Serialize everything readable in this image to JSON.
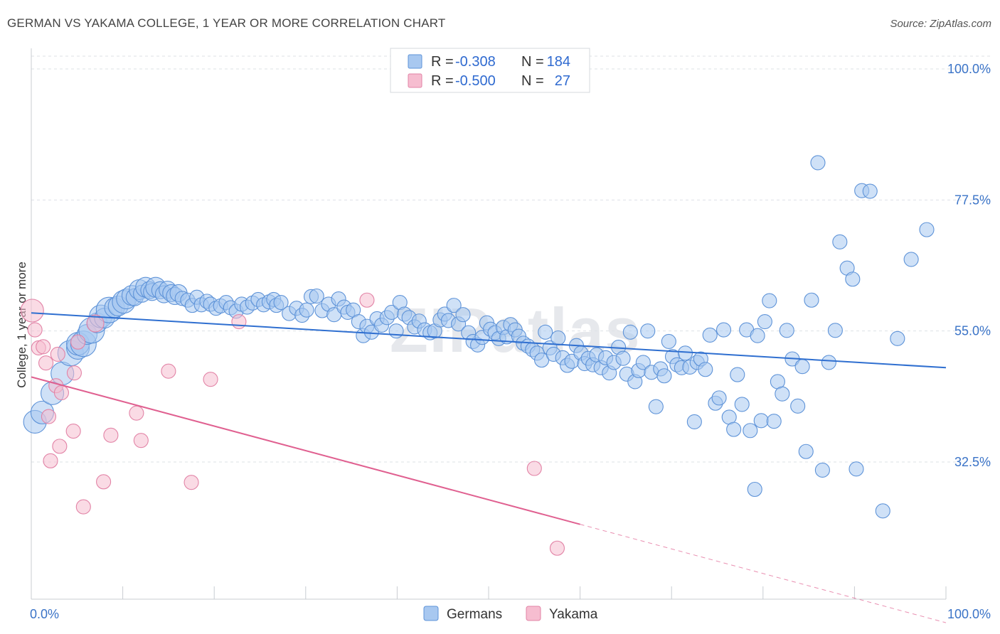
{
  "title": "GERMAN VS YAKAMA COLLEGE, 1 YEAR OR MORE CORRELATION CHART",
  "source": "Source: ZipAtlas.com",
  "watermark": "ZIPatlas",
  "legend": {
    "r_label": "R =",
    "n_label": "N =",
    "rows": [
      {
        "r": "-0.308",
        "n": "184"
      },
      {
        "r": "-0.500",
        "n": "27"
      }
    ]
  },
  "bottom_legend": [
    "Germans",
    "Yakama"
  ],
  "colors": {
    "germans_fill": "#a8c8f0",
    "germans_stroke": "#5e93d8",
    "germans_line": "#2f6fd0",
    "yakama_fill": "#f6bdd0",
    "yakama_stroke": "#e283a6",
    "yakama_line": "#e06090",
    "tick_text": "#3a73c7",
    "grid": "#dde1e6"
  },
  "chart_data": {
    "type": "scatter",
    "title": "GERMAN VS YAKAMA COLLEGE, 1 YEAR OR MORE CORRELATION CHART",
    "xlabel": "",
    "ylabel": "College, 1 year or more",
    "xlim": [
      0,
      100
    ],
    "ylim": [
      12.5,
      102
    ],
    "x_tick_labels": [
      "0.0%",
      "100.0%"
    ],
    "y_ticks": [
      32.5,
      55.0,
      77.5,
      100.0
    ],
    "y_tick_labels": [
      "32.5%",
      "55.0%",
      "77.5%",
      "100.0%"
    ],
    "grid": true,
    "legend_position": "top-center",
    "series": [
      {
        "name": "Germans",
        "r": -0.308,
        "n": 184,
        "trend": {
          "x": [
            0,
            100
          ],
          "y": [
            58.1,
            48.7
          ]
        },
        "points": [
          [
            0.4,
            39.4,
            16
          ],
          [
            1.2,
            41.0,
            16
          ],
          [
            2.3,
            44.3,
            16
          ],
          [
            3.4,
            47.7,
            16
          ],
          [
            4.3,
            51.2,
            18
          ],
          [
            5.1,
            52.1,
            16
          ],
          [
            5.1,
            52.8,
            16
          ],
          [
            5.7,
            52.8,
            18
          ],
          [
            6.1,
            54.4,
            14
          ],
          [
            6.6,
            55.1,
            18
          ],
          [
            7.2,
            56.4,
            14
          ],
          [
            7.6,
            57.5,
            16
          ],
          [
            8.0,
            57.2,
            14
          ],
          [
            8.5,
            58.6,
            18
          ],
          [
            9.1,
            59.0,
            14
          ],
          [
            9.5,
            59.3,
            14
          ],
          [
            10.1,
            60.0,
            16
          ],
          [
            10.4,
            60.5,
            14
          ],
          [
            11.0,
            61.1,
            14
          ],
          [
            11.3,
            60.8,
            12
          ],
          [
            11.8,
            62.1,
            14
          ],
          [
            12.1,
            61.4,
            12
          ],
          [
            12.5,
            62.5,
            14
          ],
          [
            12.9,
            62.0,
            12
          ],
          [
            13.2,
            61.7,
            12
          ],
          [
            13.6,
            62.5,
            14
          ],
          [
            14.1,
            62.0,
            12
          ],
          [
            14.5,
            61.3,
            12
          ],
          [
            14.9,
            62.1,
            12
          ],
          [
            15.3,
            61.5,
            12
          ],
          [
            15.7,
            61.0,
            12
          ],
          [
            16.1,
            61.5,
            12
          ],
          [
            16.5,
            60.6,
            10
          ],
          [
            17.1,
            60.3,
            10
          ],
          [
            17.6,
            59.4,
            10
          ],
          [
            18.1,
            60.8,
            10
          ],
          [
            18.6,
            59.5,
            10
          ],
          [
            19.2,
            60.1,
            10
          ],
          [
            19.6,
            59.6,
            10
          ],
          [
            20.2,
            58.9,
            10
          ],
          [
            20.7,
            59.3,
            10
          ],
          [
            21.3,
            59.9,
            10
          ],
          [
            21.8,
            59.0,
            10
          ],
          [
            22.4,
            58.4,
            10
          ],
          [
            23.0,
            59.6,
            10
          ],
          [
            23.6,
            59.1,
            10
          ],
          [
            24.2,
            59.8,
            10
          ],
          [
            24.8,
            60.4,
            10
          ],
          [
            25.4,
            59.5,
            10
          ],
          [
            26.0,
            60.0,
            10
          ],
          [
            26.5,
            60.4,
            10
          ],
          [
            26.8,
            59.4,
            10
          ],
          [
            27.3,
            59.9,
            10
          ],
          [
            28.2,
            58.0,
            10
          ],
          [
            29.0,
            58.9,
            10
          ],
          [
            29.6,
            57.7,
            10
          ],
          [
            30.1,
            58.6,
            10
          ],
          [
            30.6,
            60.9,
            10
          ],
          [
            31.2,
            61.0,
            10
          ],
          [
            31.8,
            58.5,
            10
          ],
          [
            32.5,
            59.6,
            10
          ],
          [
            33.1,
            57.8,
            10
          ],
          [
            33.6,
            60.5,
            10
          ],
          [
            34.2,
            59.1,
            10
          ],
          [
            34.6,
            58.2,
            10
          ],
          [
            35.2,
            58.6,
            10
          ],
          [
            35.8,
            56.6,
            10
          ],
          [
            36.3,
            54.2,
            10
          ],
          [
            36.7,
            55.8,
            10
          ],
          [
            37.2,
            54.8,
            10
          ],
          [
            37.8,
            57.1,
            10
          ],
          [
            38.3,
            56.0,
            10
          ],
          [
            38.9,
            57.3,
            10
          ],
          [
            39.4,
            58.2,
            10
          ],
          [
            39.9,
            55.0,
            10
          ],
          [
            40.3,
            59.9,
            10
          ],
          [
            40.8,
            57.9,
            10
          ],
          [
            41.3,
            57.3,
            10
          ],
          [
            41.9,
            55.7,
            10
          ],
          [
            42.4,
            56.7,
            10
          ],
          [
            43.0,
            55.2,
            10
          ],
          [
            43.6,
            54.7,
            10
          ],
          [
            44.1,
            55.0,
            10
          ],
          [
            44.7,
            56.9,
            10
          ],
          [
            45.2,
            57.9,
            10
          ],
          [
            45.6,
            56.8,
            10
          ],
          [
            46.2,
            59.4,
            10
          ],
          [
            46.7,
            56.2,
            10
          ],
          [
            47.2,
            57.8,
            10
          ],
          [
            47.8,
            54.7,
            10
          ],
          [
            48.3,
            53.2,
            10
          ],
          [
            48.8,
            52.6,
            10
          ],
          [
            49.3,
            53.9,
            10
          ],
          [
            49.8,
            56.4,
            10
          ],
          [
            50.2,
            55.3,
            10
          ],
          [
            50.7,
            54.7,
            10
          ],
          [
            51.1,
            53.7,
            10
          ],
          [
            51.6,
            55.6,
            10
          ],
          [
            52.0,
            54.0,
            10
          ],
          [
            52.4,
            56.1,
            10
          ],
          [
            52.9,
            55.2,
            10
          ],
          [
            53.3,
            54.1,
            10
          ],
          [
            53.8,
            52.9,
            10
          ],
          [
            54.3,
            52.4,
            10
          ],
          [
            54.8,
            51.8,
            10
          ],
          [
            55.3,
            51.2,
            10
          ],
          [
            55.8,
            50.0,
            10
          ],
          [
            56.2,
            54.8,
            10
          ],
          [
            56.7,
            52.1,
            10
          ],
          [
            57.1,
            51.0,
            10
          ],
          [
            57.6,
            53.8,
            10
          ],
          [
            58.1,
            50.4,
            10
          ],
          [
            58.6,
            49.1,
            10
          ],
          [
            59.1,
            49.8,
            10
          ],
          [
            59.6,
            52.5,
            10
          ],
          [
            60.1,
            51.2,
            10
          ],
          [
            60.5,
            49.4,
            10
          ],
          [
            60.9,
            50.3,
            10
          ],
          [
            61.4,
            49.2,
            10
          ],
          [
            61.8,
            50.9,
            10
          ],
          [
            62.3,
            48.7,
            10
          ],
          [
            62.8,
            50.4,
            10
          ],
          [
            63.2,
            47.8,
            10
          ],
          [
            63.7,
            49.6,
            10
          ],
          [
            64.2,
            52.2,
            10
          ],
          [
            64.7,
            50.3,
            10
          ],
          [
            65.1,
            47.6,
            10
          ],
          [
            65.5,
            54.8,
            10
          ],
          [
            66.0,
            46.3,
            10
          ],
          [
            66.4,
            48.2,
            10
          ],
          [
            66.9,
            49.6,
            10
          ],
          [
            67.4,
            55.0,
            10
          ],
          [
            67.8,
            47.9,
            10
          ],
          [
            68.3,
            42.0,
            10
          ],
          [
            68.8,
            48.5,
            10
          ],
          [
            69.2,
            47.3,
            10
          ],
          [
            69.7,
            53.2,
            10
          ],
          [
            70.1,
            50.6,
            10
          ],
          [
            70.6,
            49.2,
            10
          ],
          [
            71.1,
            48.7,
            10
          ],
          [
            71.5,
            51.2,
            10
          ],
          [
            72.0,
            48.8,
            10
          ],
          [
            72.5,
            39.4,
            10
          ],
          [
            72.8,
            49.6,
            10
          ],
          [
            73.2,
            50.2,
            10
          ],
          [
            73.7,
            48.4,
            10
          ],
          [
            74.2,
            54.3,
            10
          ],
          [
            74.8,
            42.6,
            10
          ],
          [
            75.2,
            43.5,
            10
          ],
          [
            75.7,
            55.2,
            10
          ],
          [
            76.3,
            40.2,
            10
          ],
          [
            76.8,
            38.1,
            10
          ],
          [
            77.2,
            47.5,
            10
          ],
          [
            77.7,
            42.4,
            10
          ],
          [
            78.2,
            55.2,
            10
          ],
          [
            78.6,
            37.9,
            10
          ],
          [
            79.1,
            27.8,
            10
          ],
          [
            79.4,
            54.2,
            10
          ],
          [
            79.8,
            39.6,
            10
          ],
          [
            80.2,
            56.6,
            10
          ],
          [
            80.7,
            60.2,
            10
          ],
          [
            81.2,
            39.5,
            10
          ],
          [
            81.6,
            46.3,
            10
          ],
          [
            82.1,
            44.2,
            10
          ],
          [
            82.6,
            55.1,
            10
          ],
          [
            83.2,
            50.2,
            10
          ],
          [
            83.8,
            42.1,
            10
          ],
          [
            84.3,
            48.9,
            10
          ],
          [
            84.7,
            34.3,
            10
          ],
          [
            85.3,
            60.3,
            10
          ],
          [
            86.0,
            83.9,
            10
          ],
          [
            86.5,
            31.1,
            10
          ],
          [
            87.2,
            49.6,
            10
          ],
          [
            87.9,
            55.1,
            10
          ],
          [
            88.4,
            70.3,
            10
          ],
          [
            89.2,
            65.8,
            10
          ],
          [
            89.8,
            63.9,
            10
          ],
          [
            90.2,
            31.3,
            10
          ],
          [
            90.8,
            79.1,
            10
          ],
          [
            91.7,
            79.0,
            10
          ],
          [
            93.1,
            24.1,
            10
          ],
          [
            94.7,
            53.7,
            10
          ],
          [
            96.2,
            67.3,
            10
          ],
          [
            97.9,
            72.4,
            10
          ]
        ]
      },
      {
        "name": "Yakama",
        "r": -0.5,
        "n": 27,
        "trend": {
          "x": [
            0,
            60
          ],
          "y": [
            47.1,
            21.8
          ]
        },
        "trend_dashed": {
          "x": [
            60,
            100
          ],
          "y": [
            21.8,
            4.9
          ]
        },
        "points": [
          [
            0.1,
            58.5,
            16
          ],
          [
            0.4,
            55.2,
            10
          ],
          [
            0.8,
            52.1,
            10
          ],
          [
            1.3,
            52.3,
            10
          ],
          [
            1.6,
            49.5,
            10
          ],
          [
            1.9,
            40.3,
            10
          ],
          [
            2.1,
            32.7,
            10
          ],
          [
            2.7,
            45.6,
            10
          ],
          [
            2.9,
            51.0,
            10
          ],
          [
            3.1,
            35.2,
            10
          ],
          [
            3.3,
            44.4,
            10
          ],
          [
            4.6,
            37.8,
            10
          ],
          [
            4.7,
            47.8,
            10
          ],
          [
            5.1,
            53.1,
            10
          ],
          [
            5.7,
            24.8,
            10
          ],
          [
            7.0,
            56.3,
            12
          ],
          [
            7.9,
            29.1,
            10
          ],
          [
            8.7,
            37.1,
            10
          ],
          [
            11.5,
            40.9,
            10
          ],
          [
            12.0,
            36.2,
            10
          ],
          [
            15.0,
            48.1,
            10
          ],
          [
            17.5,
            29.0,
            10
          ],
          [
            19.6,
            46.7,
            10
          ],
          [
            22.7,
            56.6,
            10
          ],
          [
            36.7,
            60.3,
            10
          ],
          [
            55.0,
            31.4,
            10
          ],
          [
            57.5,
            17.7,
            10
          ]
        ]
      }
    ]
  }
}
